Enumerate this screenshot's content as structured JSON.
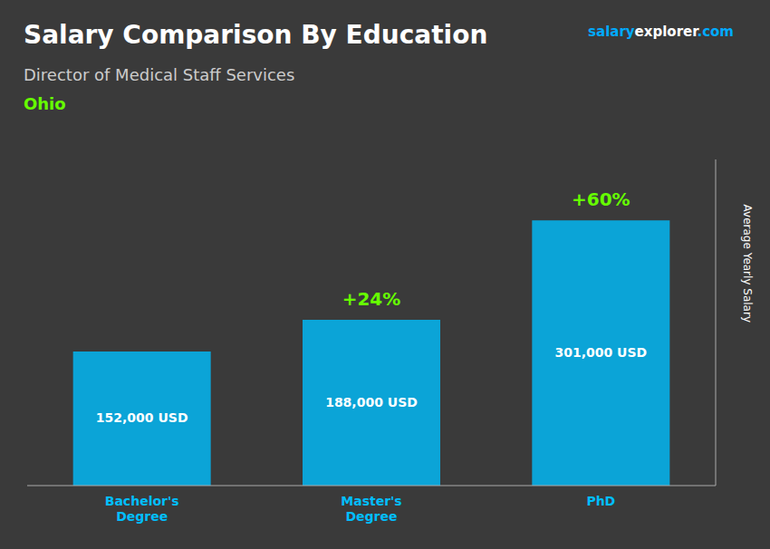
{
  "chart_data": {
    "type": "bar",
    "title": "Salary Comparison By Education",
    "subtitle": "Director of Medical Staff Services",
    "location": {
      "text": "Ohio",
      "color": "#66FF00"
    },
    "brand": [
      {
        "text": "salary",
        "color": "#00AAFF"
      },
      {
        "text": "explorer",
        "color": "#FFFFFF"
      },
      {
        "text": ".com",
        "color": "#00AAFF"
      }
    ],
    "ylabel": "Average Yearly Salary",
    "categories": [
      "Bachelor's\nDegree",
      "Master's\nDegree",
      "PhD"
    ],
    "values": [
      152000,
      188000,
      301000
    ],
    "value_labels": [
      "152,000 USD",
      "188,000 USD",
      "301,000 USD"
    ],
    "annotations": [
      {
        "text": "+24%",
        "color": "#66FF00"
      },
      {
        "text": "+60%",
        "color": "#66FF00"
      }
    ],
    "color": "#00BFFF",
    "ylim": [
      0,
      370000
    ],
    "tick_labels": "x",
    "grid": false
  }
}
